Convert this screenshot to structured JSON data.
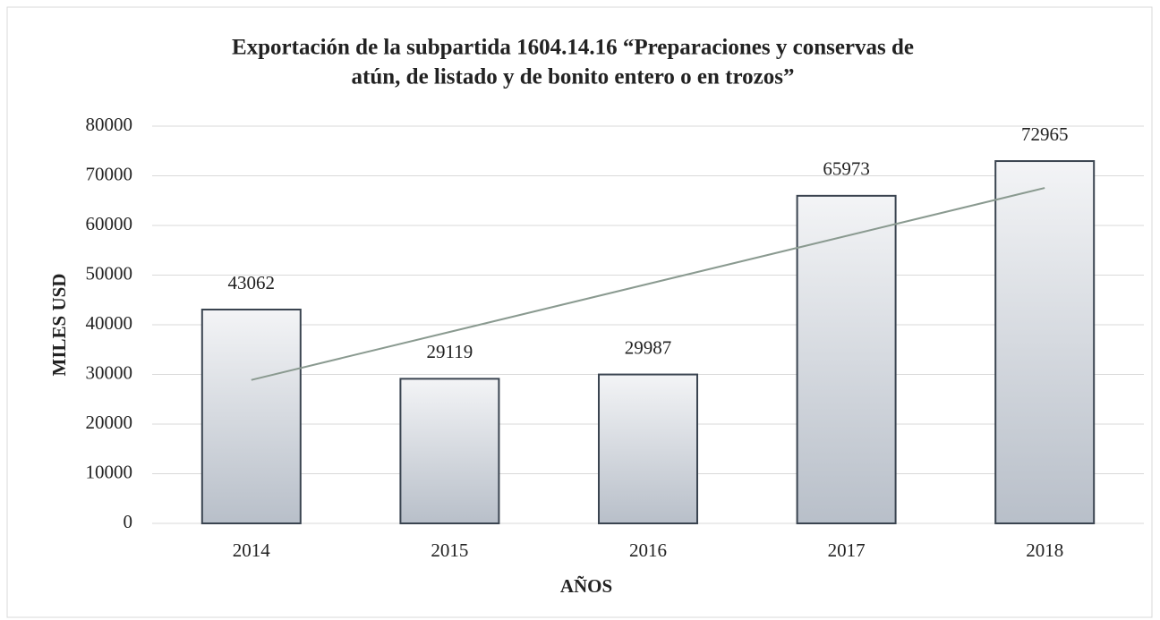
{
  "chart_data": {
    "type": "bar",
    "title": [
      "Exportación de la subpartida 1604.14.16 “Preparaciones y conservas de",
      "atún, de listado y de bonito entero o en trozos”"
    ],
    "x_label": "AÑOS",
    "y_label": "MILES  USD",
    "categories": [
      "2014",
      "2015",
      "2016",
      "2017",
      "2018"
    ],
    "values": [
      43062,
      29119,
      29987,
      65973,
      72965
    ],
    "color": [
      "#f3f4f6",
      "#b8bfc9"
    ],
    "edge_color": "#3a4450",
    "ylim": [
      0,
      80000
    ],
    "yticks": [
      0,
      10000,
      20000,
      30000,
      40000,
      50000,
      60000,
      70000,
      80000
    ],
    "grid": true,
    "data_labels": true,
    "trendline": {
      "type": "linear",
      "color": "#8a9a90"
    }
  }
}
